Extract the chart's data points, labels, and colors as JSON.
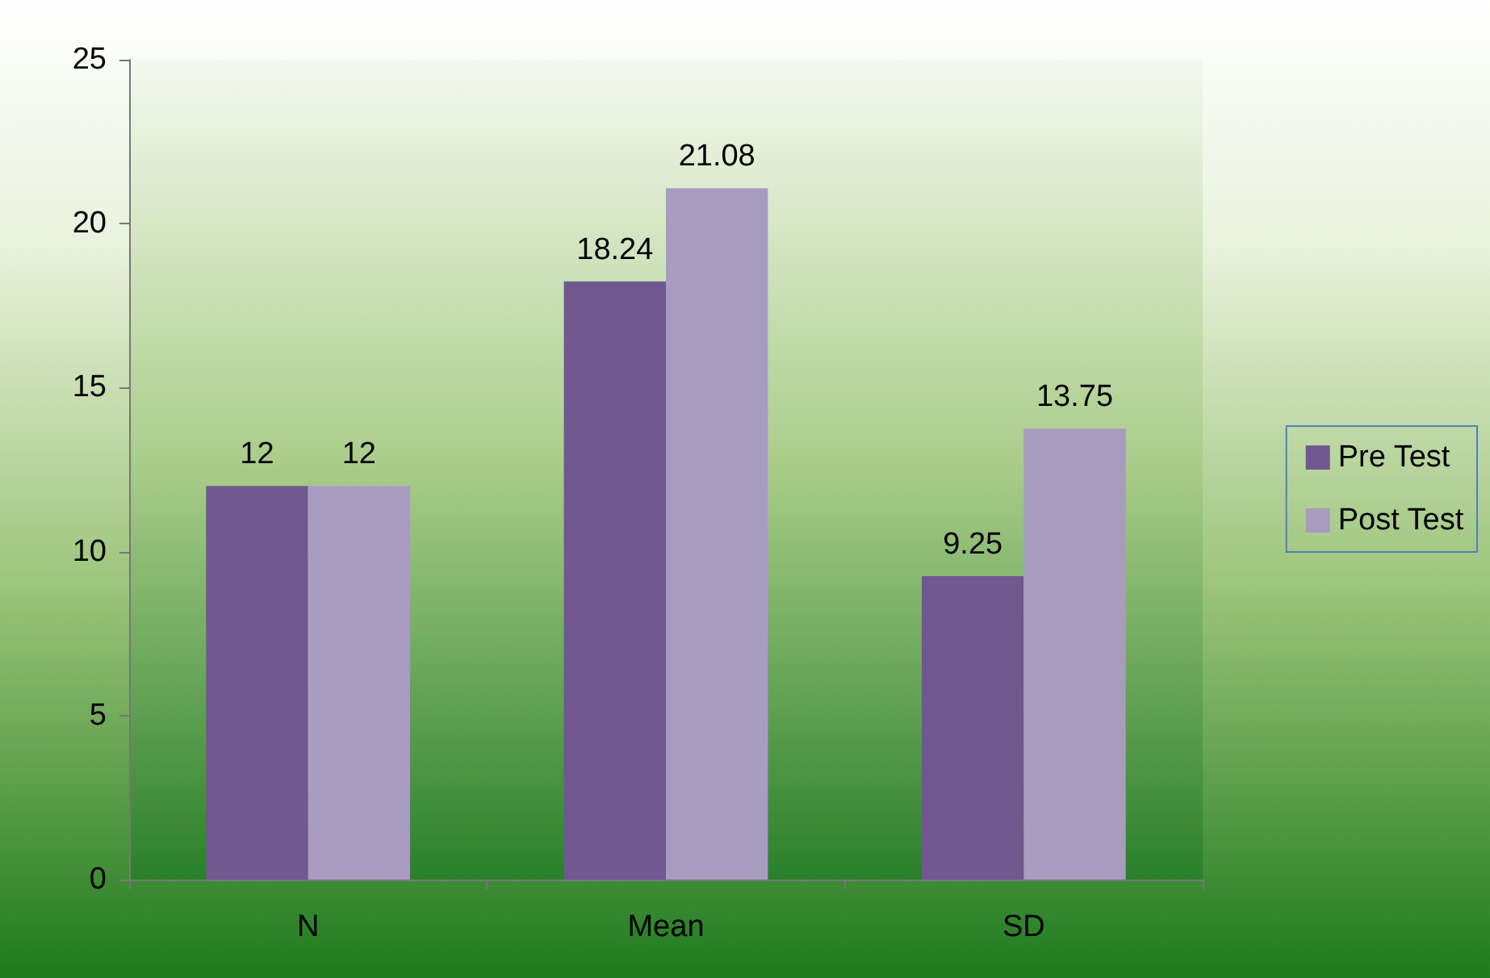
{
  "chart_data": {
    "type": "bar",
    "categories": [
      "N",
      "Mean",
      "SD"
    ],
    "series": [
      {
        "name": "Pre Test",
        "color": "#70578f",
        "values": [
          12,
          18.24,
          9.25
        ]
      },
      {
        "name": "Post Test",
        "color": "#a99bc0",
        "values": [
          12,
          21.08,
          13.75
        ]
      }
    ],
    "ylim": [
      0,
      25
    ],
    "yticks": [
      0,
      5,
      10,
      15,
      20,
      25
    ],
    "grid": false,
    "legend": "right",
    "data_labels": true
  }
}
